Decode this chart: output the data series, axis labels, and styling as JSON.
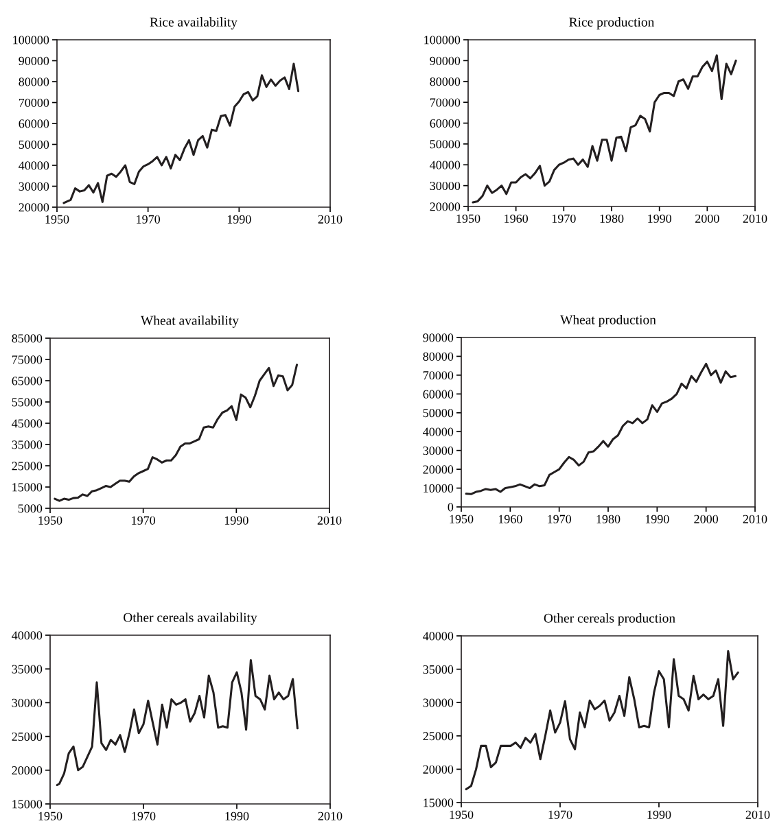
{
  "chart_data": [
    {
      "type": "line",
      "title": "Rice availability",
      "xlim": [
        1950,
        2010
      ],
      "xticks": [
        1950,
        1970,
        1990,
        2010
      ],
      "ylim": [
        20000,
        100000
      ],
      "yticks": [
        20000,
        30000,
        40000,
        50000,
        60000,
        70000,
        80000,
        90000,
        100000
      ],
      "grid": false,
      "legend": false,
      "marker": "none",
      "line_style": "solid",
      "series": [
        {
          "color": "#231f20",
          "x": [
            1951.5,
            1953,
            1954,
            1955,
            1956,
            1957,
            1958,
            1959,
            1960,
            1961,
            1962,
            1963,
            1964,
            1965,
            1966,
            1967,
            1968,
            1969,
            1970,
            1971,
            1972,
            1973,
            1974,
            1975,
            1976,
            1977,
            1978,
            1979,
            1980,
            1981,
            1982,
            1983,
            1984,
            1985,
            1986,
            1987,
            1988,
            1989,
            1990,
            1991,
            1992,
            1993,
            1994,
            1995,
            1996,
            1997,
            1998,
            1999,
            2000,
            2001,
            2002,
            2003
          ],
          "values": [
            22000,
            23500,
            29000,
            27500,
            28000,
            30500,
            27000,
            31500,
            22500,
            35000,
            36000,
            34500,
            37000,
            40000,
            32000,
            31000,
            37000,
            39500,
            40500,
            42000,
            44000,
            40000,
            44000,
            38500,
            45000,
            42500,
            48000,
            52000,
            45000,
            52000,
            54000,
            48500,
            57000,
            56500,
            63500,
            64000,
            59000,
            68000,
            70500,
            74000,
            75000,
            71000,
            73000,
            83000,
            77500,
            81000,
            78000,
            80500,
            82000,
            76500,
            88500,
            75500
          ]
        }
      ]
    },
    {
      "type": "line",
      "title": "Rice production",
      "xlim": [
        1950,
        2010
      ],
      "xticks": [
        1950,
        1960,
        1970,
        1980,
        1990,
        2000,
        2010
      ],
      "ylim": [
        20000,
        100000
      ],
      "yticks": [
        20000,
        30000,
        40000,
        50000,
        60000,
        70000,
        80000,
        90000,
        100000
      ],
      "grid": false,
      "legend": false,
      "marker": "none",
      "line_style": "solid",
      "series": [
        {
          "color": "#231f20",
          "x": [
            1951,
            1952,
            1953,
            1954,
            1955,
            1956,
            1957,
            1958,
            1959,
            1960,
            1961,
            1962,
            1963,
            1964,
            1965,
            1966,
            1967,
            1968,
            1969,
            1970,
            1971,
            1972,
            1973,
            1974,
            1975,
            1976,
            1977,
            1978,
            1979,
            1980,
            1981,
            1982,
            1983,
            1984,
            1985,
            1986,
            1987,
            1988,
            1989,
            1990,
            1991,
            1992,
            1993,
            1994,
            1995,
            1996,
            1997,
            1998,
            1999,
            2000,
            2001,
            2002,
            2003,
            2004,
            2005,
            2006
          ],
          "values": [
            22000,
            22500,
            25000,
            30000,
            26500,
            28000,
            30000,
            26000,
            31500,
            31500,
            34000,
            35500,
            33500,
            36000,
            39500,
            30000,
            32000,
            37500,
            40000,
            41000,
            42500,
            43000,
            40000,
            42500,
            39000,
            49000,
            42000,
            52000,
            52000,
            42000,
            53000,
            53500,
            46500,
            58000,
            59000,
            63500,
            62000,
            56000,
            70000,
            73500,
            74500,
            74500,
            73000,
            80000,
            81000,
            76500,
            82500,
            82500,
            87000,
            89500,
            85000,
            92500,
            71500,
            88500,
            83500,
            90000
          ]
        }
      ]
    },
    {
      "type": "line",
      "title": "Wheat availability",
      "xlim": [
        1950,
        2010
      ],
      "xticks": [
        1950,
        1970,
        1990,
        2010
      ],
      "ylim": [
        5000,
        85000
      ],
      "yticks": [
        5000,
        15000,
        25000,
        35000,
        45000,
        55000,
        65000,
        75000,
        85000
      ],
      "grid": false,
      "legend": false,
      "marker": "none",
      "line_style": "solid",
      "series": [
        {
          "color": "#231f20",
          "x": [
            1951,
            1952,
            1953,
            1954,
            1955,
            1956,
            1957,
            1958,
            1959,
            1960,
            1961,
            1962,
            1963,
            1964,
            1965,
            1966,
            1967,
            1968,
            1969,
            1970,
            1971,
            1972,
            1973,
            1974,
            1975,
            1976,
            1977,
            1978,
            1979,
            1980,
            1981,
            1982,
            1983,
            1984,
            1985,
            1986,
            1987,
            1988,
            1989,
            1990,
            1991,
            1992,
            1993,
            1994,
            1995,
            1996,
            1997,
            1998,
            1999,
            2000,
            2001,
            2002,
            2003
          ],
          "values": [
            9500,
            8500,
            9500,
            9000,
            9800,
            10000,
            11500,
            10800,
            13000,
            13500,
            14500,
            15500,
            15000,
            16500,
            18000,
            18000,
            17500,
            20000,
            21500,
            22500,
            23500,
            29000,
            28000,
            26500,
            27500,
            27500,
            30000,
            34000,
            35500,
            35500,
            36500,
            37500,
            43000,
            43500,
            43000,
            47000,
            50000,
            51000,
            53000,
            46500,
            58500,
            57000,
            52500,
            58000,
            65000,
            68000,
            71000,
            62500,
            67500,
            67000,
            60500,
            63000,
            72500
          ]
        }
      ]
    },
    {
      "type": "line",
      "title": "Wheat production",
      "xlim": [
        1950,
        2010
      ],
      "xticks": [
        1950,
        1960,
        1970,
        1980,
        1990,
        2000,
        2010
      ],
      "ylim": [
        0,
        90000
      ],
      "yticks": [
        0,
        10000,
        20000,
        30000,
        40000,
        50000,
        60000,
        70000,
        80000,
        90000
      ],
      "grid": false,
      "legend": false,
      "marker": "none",
      "line_style": "solid",
      "series": [
        {
          "color": "#231f20",
          "x": [
            1951,
            1952,
            1953,
            1954,
            1955,
            1956,
            1957,
            1958,
            1959,
            1960,
            1961,
            1962,
            1963,
            1964,
            1965,
            1966,
            1967,
            1968,
            1969,
            1970,
            1971,
            1972,
            1973,
            1974,
            1975,
            1976,
            1977,
            1978,
            1979,
            1980,
            1981,
            1982,
            1983,
            1984,
            1985,
            1986,
            1987,
            1988,
            1989,
            1990,
            1991,
            1992,
            1993,
            1994,
            1995,
            1996,
            1997,
            1998,
            1999,
            2000,
            2001,
            2002,
            2003,
            2004,
            2005,
            2006
          ],
          "values": [
            7000,
            6800,
            8000,
            8500,
            9500,
            9000,
            9500,
            8000,
            10000,
            10500,
            11000,
            12000,
            11000,
            10000,
            12000,
            11000,
            11500,
            17000,
            18500,
            20000,
            23500,
            26500,
            25000,
            22000,
            24000,
            29000,
            29500,
            32000,
            35000,
            32000,
            36000,
            38000,
            43000,
            45500,
            44500,
            47000,
            44500,
            46500,
            54000,
            50500,
            55000,
            56000,
            57500,
            60000,
            65500,
            63000,
            69500,
            66500,
            71500,
            76000,
            70000,
            72500,
            66000,
            72000,
            69000,
            69500
          ]
        }
      ]
    },
    {
      "type": "line",
      "title": "Other cereals availability",
      "xlim": [
        1950,
        2010
      ],
      "xticks": [
        1950,
        1970,
        1990,
        2010
      ],
      "ylim": [
        15000,
        40000
      ],
      "yticks": [
        15000,
        20000,
        25000,
        30000,
        35000,
        40000
      ],
      "grid": false,
      "legend": false,
      "marker": "none",
      "line_style": "solid",
      "series": [
        {
          "color": "#231f20",
          "x": [
            1951.5,
            1952,
            1953,
            1954,
            1955,
            1956,
            1957,
            1958,
            1959,
            1960,
            1961,
            1962,
            1963,
            1964,
            1965,
            1966,
            1967,
            1968,
            1969,
            1970,
            1971,
            1972,
            1973,
            1974,
            1975,
            1976,
            1977,
            1978,
            1979,
            1980,
            1981,
            1982,
            1983,
            1984,
            1985,
            1986,
            1987,
            1988,
            1989,
            1990,
            1991,
            1992,
            1993,
            1994,
            1995,
            1996,
            1997,
            1998,
            1999,
            2000,
            2001,
            2002,
            2003
          ],
          "values": [
            17800,
            18000,
            19500,
            22500,
            23500,
            20000,
            20500,
            22000,
            23500,
            33000,
            24000,
            23000,
            24500,
            23800,
            25200,
            22700,
            25500,
            29000,
            25500,
            26800,
            30300,
            27000,
            23800,
            29700,
            26300,
            30500,
            29700,
            30000,
            30500,
            27200,
            28500,
            31000,
            27800,
            34000,
            31500,
            26300,
            26500,
            26300,
            33000,
            34500,
            31500,
            26000,
            36300,
            31000,
            30500,
            29000,
            34000,
            30500,
            31500,
            30500,
            31000,
            33500,
            26200
          ]
        }
      ]
    },
    {
      "type": "line",
      "title": "Other cereals production",
      "xlim": [
        1950,
        2010
      ],
      "xticks": [
        1950,
        1970,
        1990,
        2010
      ],
      "ylim": [
        15000,
        40000
      ],
      "yticks": [
        15000,
        20000,
        25000,
        30000,
        35000,
        40000
      ],
      "grid": false,
      "legend": false,
      "marker": "none",
      "line_style": "solid",
      "series": [
        {
          "color": "#231f20",
          "x": [
            1951,
            1952,
            1953,
            1954,
            1955,
            1956,
            1957,
            1958,
            1959,
            1960,
            1961,
            1962,
            1963,
            1964,
            1965,
            1966,
            1967,
            1968,
            1969,
            1970,
            1971,
            1972,
            1973,
            1974,
            1975,
            1976,
            1977,
            1978,
            1979,
            1980,
            1981,
            1982,
            1983,
            1984,
            1985,
            1986,
            1987,
            1988,
            1989,
            1990,
            1991,
            1992,
            1993,
            1994,
            1995,
            1996,
            1997,
            1998,
            1999,
            2000,
            2001,
            2002,
            2003,
            2004,
            2005,
            2006
          ],
          "values": [
            17000,
            17500,
            20000,
            23500,
            23500,
            20300,
            21000,
            23500,
            23500,
            23500,
            24000,
            23200,
            24700,
            24000,
            25300,
            21500,
            25000,
            28800,
            25500,
            27000,
            30200,
            24500,
            23000,
            28500,
            26300,
            30300,
            29000,
            29500,
            30300,
            27300,
            28500,
            31000,
            28000,
            33800,
            30500,
            26300,
            26500,
            26300,
            31500,
            34700,
            33500,
            26300,
            36500,
            31000,
            30500,
            28800,
            34000,
            30500,
            31200,
            30500,
            31000,
            33500,
            26500,
            37700,
            33500,
            34500
          ]
        }
      ]
    }
  ]
}
